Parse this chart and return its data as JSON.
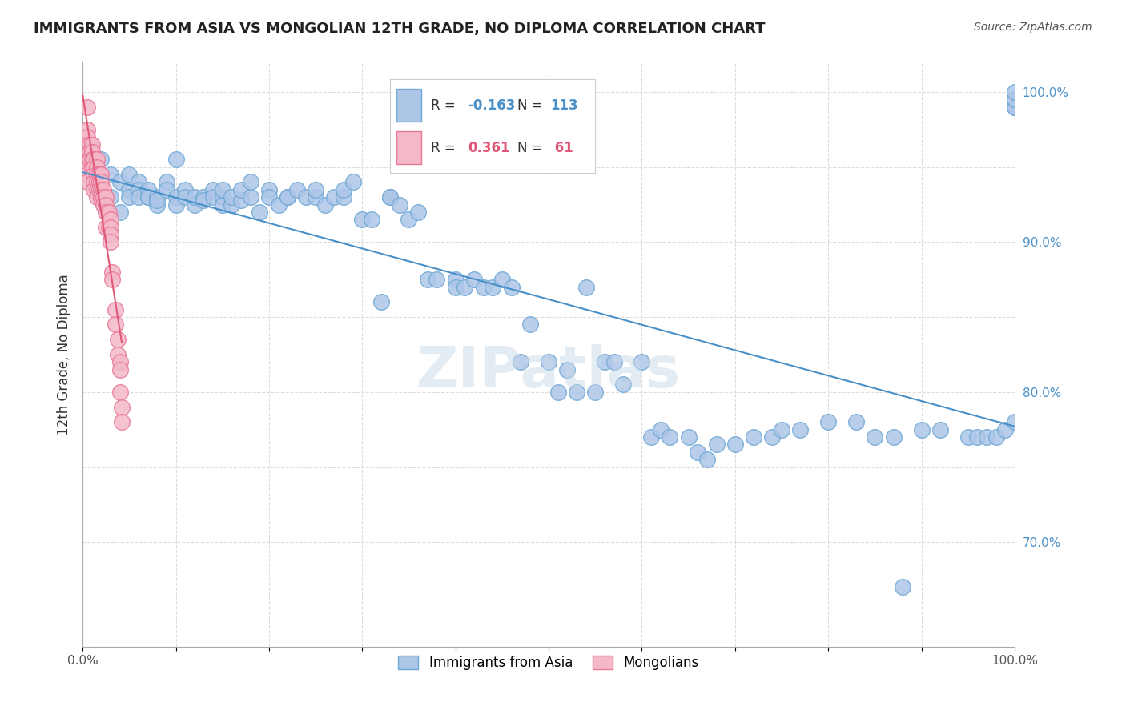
{
  "title": "IMMIGRANTS FROM ASIA VS MONGOLIAN 12TH GRADE, NO DIPLOMA CORRELATION CHART",
  "source": "Source: ZipAtlas.com",
  "xlabel_bottom": "",
  "ylabel": "12th Grade, No Diploma",
  "legend_label_blue": "Immigrants from Asia",
  "legend_label_pink": "Mongolians",
  "blue_R": "-0.163",
  "blue_N": "113",
  "pink_R": "0.361",
  "pink_N": "61",
  "blue_color": "#adc6e8",
  "blue_edge": "#6fa8d4",
  "pink_color": "#f4b8c8",
  "pink_edge": "#e87898",
  "blue_line_color": "#4a90c8",
  "pink_line_color": "#e05878",
  "background_color": "#ffffff",
  "grid_color": "#dddddd",
  "xlim": [
    0.0,
    1.0
  ],
  "ylim": [
    0.63,
    1.02
  ],
  "yticks": [
    0.65,
    0.7,
    0.75,
    0.8,
    0.85,
    0.9,
    0.95,
    1.0
  ],
  "ytick_labels_right": [
    "",
    "70.0%",
    "",
    "80.0%",
    "",
    "90.0%",
    "",
    "100.0%"
  ],
  "xtick_labels": [
    "0.0%",
    "",
    "",
    "",
    "",
    "",
    "",
    "",
    "",
    "",
    "100.0%"
  ],
  "blue_x": [
    0.02,
    0.03,
    0.03,
    0.04,
    0.04,
    0.05,
    0.05,
    0.05,
    0.06,
    0.06,
    0.06,
    0.07,
    0.07,
    0.07,
    0.08,
    0.08,
    0.08,
    0.09,
    0.09,
    0.1,
    0.1,
    0.1,
    0.11,
    0.11,
    0.12,
    0.12,
    0.13,
    0.13,
    0.14,
    0.14,
    0.15,
    0.15,
    0.15,
    0.16,
    0.16,
    0.17,
    0.17,
    0.18,
    0.18,
    0.19,
    0.2,
    0.2,
    0.21,
    0.22,
    0.22,
    0.23,
    0.24,
    0.25,
    0.25,
    0.26,
    0.27,
    0.28,
    0.28,
    0.29,
    0.3,
    0.31,
    0.32,
    0.33,
    0.33,
    0.34,
    0.35,
    0.36,
    0.37,
    0.38,
    0.4,
    0.4,
    0.41,
    0.42,
    0.43,
    0.44,
    0.45,
    0.46,
    0.47,
    0.48,
    0.5,
    0.51,
    0.52,
    0.53,
    0.54,
    0.55,
    0.56,
    0.57,
    0.58,
    0.6,
    0.61,
    0.62,
    0.63,
    0.65,
    0.66,
    0.67,
    0.68,
    0.7,
    0.72,
    0.74,
    0.75,
    0.77,
    0.8,
    0.83,
    0.85,
    0.87,
    0.88,
    0.9,
    0.92,
    0.95,
    0.96,
    0.97,
    0.98,
    0.99,
    1.0,
    1.0,
    1.0,
    1.0,
    1.0
  ],
  "blue_y": [
    0.955,
    0.945,
    0.93,
    0.94,
    0.92,
    0.945,
    0.935,
    0.93,
    0.94,
    0.935,
    0.93,
    0.93,
    0.935,
    0.93,
    0.93,
    0.925,
    0.928,
    0.94,
    0.935,
    0.955,
    0.93,
    0.925,
    0.935,
    0.93,
    0.925,
    0.93,
    0.93,
    0.928,
    0.935,
    0.93,
    0.93,
    0.925,
    0.935,
    0.925,
    0.93,
    0.928,
    0.935,
    0.93,
    0.94,
    0.92,
    0.935,
    0.93,
    0.925,
    0.93,
    0.93,
    0.935,
    0.93,
    0.93,
    0.935,
    0.925,
    0.93,
    0.93,
    0.935,
    0.94,
    0.915,
    0.915,
    0.86,
    0.93,
    0.93,
    0.925,
    0.915,
    0.92,
    0.875,
    0.875,
    0.875,
    0.87,
    0.87,
    0.875,
    0.87,
    0.87,
    0.875,
    0.87,
    0.82,
    0.845,
    0.82,
    0.8,
    0.815,
    0.8,
    0.87,
    0.8,
    0.82,
    0.82,
    0.805,
    0.82,
    0.77,
    0.775,
    0.77,
    0.77,
    0.76,
    0.755,
    0.765,
    0.765,
    0.77,
    0.77,
    0.775,
    0.775,
    0.78,
    0.78,
    0.77,
    0.77,
    0.67,
    0.775,
    0.775,
    0.77,
    0.77,
    0.77,
    0.77,
    0.775,
    0.78,
    0.99,
    0.99,
    0.995,
    1.0
  ],
  "pink_x": [
    0.005,
    0.005,
    0.005,
    0.005,
    0.005,
    0.005,
    0.005,
    0.005,
    0.005,
    0.008,
    0.008,
    0.008,
    0.01,
    0.01,
    0.01,
    0.01,
    0.01,
    0.012,
    0.012,
    0.012,
    0.012,
    0.012,
    0.015,
    0.015,
    0.015,
    0.015,
    0.015,
    0.015,
    0.015,
    0.018,
    0.018,
    0.018,
    0.02,
    0.02,
    0.02,
    0.02,
    0.02,
    0.022,
    0.022,
    0.022,
    0.025,
    0.025,
    0.025,
    0.025,
    0.028,
    0.028,
    0.03,
    0.03,
    0.03,
    0.03,
    0.032,
    0.032,
    0.035,
    0.035,
    0.038,
    0.038,
    0.04,
    0.04,
    0.04,
    0.042,
    0.042
  ],
  "pink_y": [
    0.99,
    0.975,
    0.97,
    0.965,
    0.96,
    0.955,
    0.95,
    0.945,
    0.94,
    0.965,
    0.96,
    0.955,
    0.965,
    0.96,
    0.96,
    0.955,
    0.95,
    0.955,
    0.95,
    0.945,
    0.94,
    0.935,
    0.955,
    0.95,
    0.945,
    0.945,
    0.94,
    0.935,
    0.93,
    0.945,
    0.94,
    0.935,
    0.945,
    0.94,
    0.935,
    0.93,
    0.93,
    0.935,
    0.93,
    0.925,
    0.93,
    0.925,
    0.92,
    0.91,
    0.92,
    0.91,
    0.915,
    0.91,
    0.905,
    0.9,
    0.88,
    0.875,
    0.855,
    0.845,
    0.835,
    0.825,
    0.82,
    0.815,
    0.8,
    0.79,
    0.78
  ]
}
